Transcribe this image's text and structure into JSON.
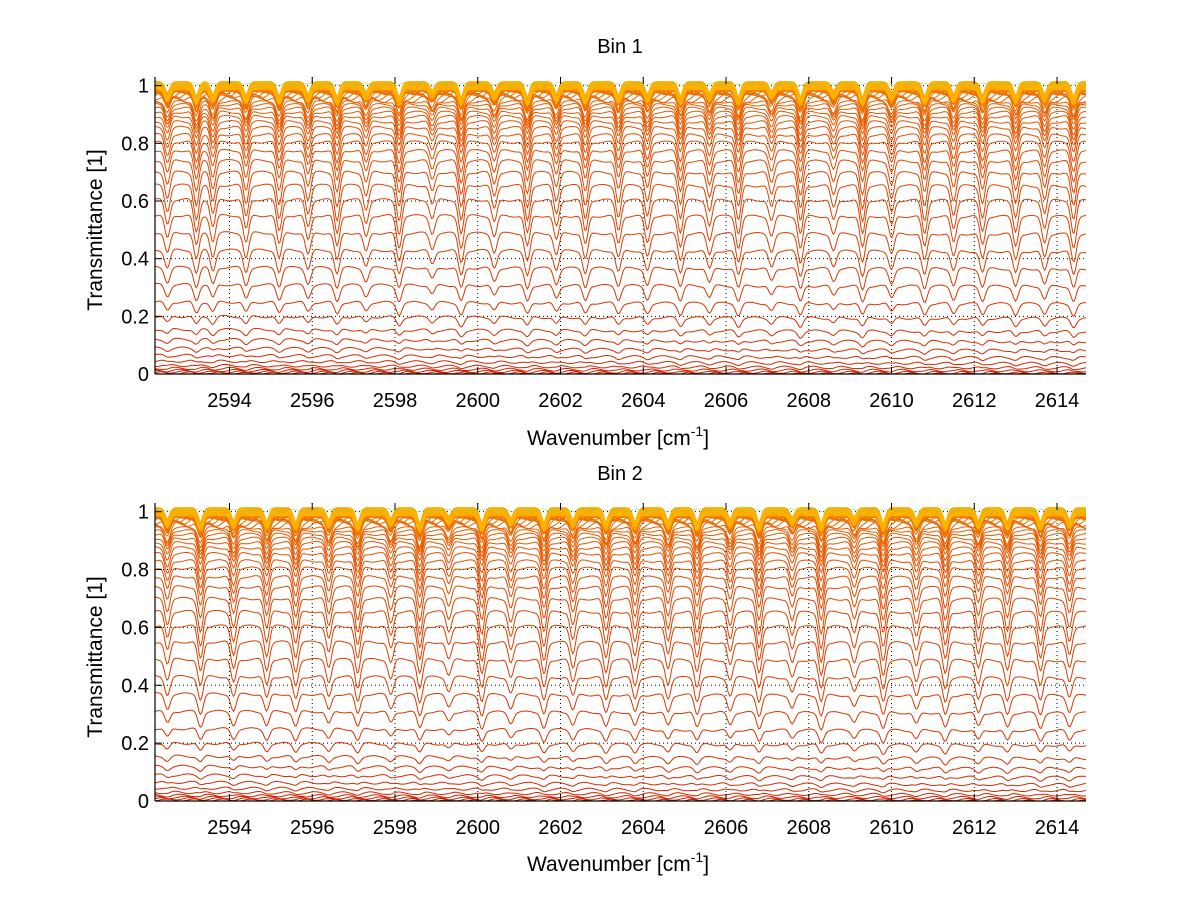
{
  "figure": {
    "background": "#ffffff"
  },
  "chart_data": [
    {
      "type": "line",
      "title": "Bin 1",
      "xlabel": "Wavenumber [cm",
      "xlabel_sup": "-1",
      "xlabel_tail": "]",
      "ylabel": "Transmittance [1]",
      "xlim": [
        2592.2,
        2614.7
      ],
      "ylim": [
        0,
        1.03
      ],
      "xticks": [
        2594,
        2596,
        2598,
        2600,
        2602,
        2604,
        2606,
        2608,
        2610,
        2612,
        2614
      ],
      "xtick_labels": [
        "2594",
        "2596",
        "2598",
        "2600",
        "2602",
        "2604",
        "2606",
        "2608",
        "2610",
        "2612",
        "2614"
      ],
      "yticks": [
        0,
        0.2,
        0.4,
        0.6,
        0.8,
        1
      ],
      "ytick_labels": [
        "0",
        "0.2",
        "0.4",
        "0.6",
        "0.8",
        "1"
      ],
      "grid": true,
      "grid_style": "dotted",
      "legend": "none",
      "series_count": 60,
      "series_baselines": [
        0,
        0.004,
        0.008,
        0.013,
        0.02,
        0.03,
        0.045,
        0.065,
        0.09,
        0.12,
        0.155,
        0.2,
        0.25,
        0.31,
        0.37,
        0.43,
        0.49,
        0.55,
        0.605,
        0.655,
        0.7,
        0.74,
        0.775,
        0.805,
        0.83,
        0.855,
        0.875,
        0.893,
        0.908,
        0.922,
        0.934,
        0.944,
        0.953,
        0.961,
        0.968,
        0.974,
        0.979,
        0.983,
        0.987,
        0.99,
        0.992,
        0.994,
        0.996,
        0.997,
        0.998,
        0.999,
        0.9995,
        1,
        1,
        1,
        1,
        1,
        1,
        1,
        1,
        1,
        1,
        1,
        1,
        1
      ],
      "absorption_line_positions": [
        2592.5,
        2593.2,
        2593.6,
        2594.4,
        2595.2,
        2595.9,
        2596.6,
        2597.3,
        2598.1,
        2598.9,
        2599.6,
        2600.4,
        2601.2,
        2601.9,
        2602.6,
        2603.4,
        2604.1,
        2604.9,
        2605.6,
        2606.3,
        2607.1,
        2607.8,
        2608.6,
        2609.3,
        2610.0,
        2610.8,
        2611.5,
        2612.2,
        2613.0,
        2613.7,
        2614.4
      ],
      "color_low": "#cc1a00",
      "color_mid": "#e85a00",
      "color_high": "#ffb400",
      "color_top_accent": "#7fd060"
    },
    {
      "type": "line",
      "title": "Bin 2",
      "xlabel": "Wavenumber [cm",
      "xlabel_sup": "-1",
      "xlabel_tail": "]",
      "ylabel": "Transmittance [1]",
      "xlim": [
        2592.2,
        2614.7
      ],
      "ylim": [
        0,
        1.03
      ],
      "xticks": [
        2594,
        2596,
        2598,
        2600,
        2602,
        2604,
        2606,
        2608,
        2610,
        2612,
        2614
      ],
      "xtick_labels": [
        "2594",
        "2596",
        "2598",
        "2600",
        "2602",
        "2604",
        "2606",
        "2608",
        "2610",
        "2612",
        "2614"
      ],
      "yticks": [
        0,
        0.2,
        0.4,
        0.6,
        0.8,
        1
      ],
      "ytick_labels": [
        "0",
        "0.2",
        "0.4",
        "0.6",
        "0.8",
        "1"
      ],
      "grid": true,
      "grid_style": "dotted",
      "legend": "none",
      "series_count": 60,
      "series_baselines": [
        0,
        0.004,
        0.008,
        0.013,
        0.02,
        0.03,
        0.045,
        0.065,
        0.09,
        0.12,
        0.155,
        0.2,
        0.25,
        0.31,
        0.37,
        0.43,
        0.49,
        0.55,
        0.605,
        0.655,
        0.7,
        0.74,
        0.775,
        0.805,
        0.83,
        0.855,
        0.875,
        0.893,
        0.908,
        0.922,
        0.934,
        0.944,
        0.953,
        0.961,
        0.968,
        0.974,
        0.979,
        0.983,
        0.987,
        0.99,
        0.992,
        0.994,
        0.996,
        0.997,
        0.998,
        0.999,
        0.9995,
        1,
        1,
        1,
        1,
        1,
        1,
        1,
        1,
        1,
        1,
        1,
        1,
        1
      ],
      "absorption_line_positions": [
        2592.5,
        2593.3,
        2594.1,
        2594.9,
        2595.6,
        2596.4,
        2597.1,
        2597.9,
        2598.6,
        2599.3,
        2600.1,
        2600.8,
        2601.6,
        2602.3,
        2603.1,
        2603.8,
        2604.6,
        2605.3,
        2606.1,
        2606.8,
        2607.6,
        2608.3,
        2609.1,
        2609.8,
        2610.6,
        2611.3,
        2612.1,
        2612.8,
        2613.6,
        2614.3
      ],
      "color_low": "#cc1a00",
      "color_mid": "#e85a00",
      "color_high": "#ffb400",
      "color_top_accent": "#7fd060"
    }
  ]
}
